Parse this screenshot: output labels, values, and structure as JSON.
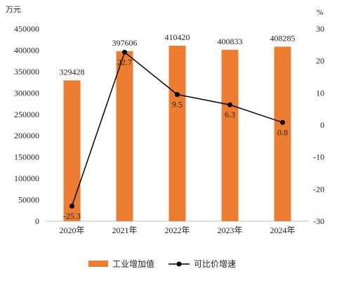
{
  "chart_data": {
    "type": "bar+line",
    "categories": [
      "2020年",
      "2021年",
      "2022年",
      "2023年",
      "2024年"
    ],
    "left_axis": {
      "unit": "万元",
      "ylim": [
        0,
        450000
      ],
      "ticks": [
        0,
        50000,
        100000,
        150000,
        200000,
        250000,
        300000,
        350000,
        400000,
        450000
      ]
    },
    "right_axis": {
      "unit": "%",
      "ylim": [
        -30,
        30
      ],
      "ticks": [
        -30,
        -20,
        -10,
        0,
        10,
        20,
        30
      ]
    },
    "series": [
      {
        "name": "工业增加值",
        "type": "bar",
        "axis": "left",
        "color": "#ED7D31",
        "values": [
          329428,
          397606,
          410420,
          400833,
          408285
        ],
        "labels": [
          "329428",
          "397606",
          "410420",
          "400833",
          "408285"
        ]
      },
      {
        "name": "可比价增速",
        "type": "line",
        "axis": "right",
        "color": "#000000",
        "values": [
          -25.3,
          22.7,
          9.5,
          6.3,
          0.8
        ],
        "labels": [
          "-25.3",
          "22.7",
          "9.5",
          "6.3",
          "0.8"
        ]
      }
    ],
    "legend": "bottom",
    "grid": false
  }
}
